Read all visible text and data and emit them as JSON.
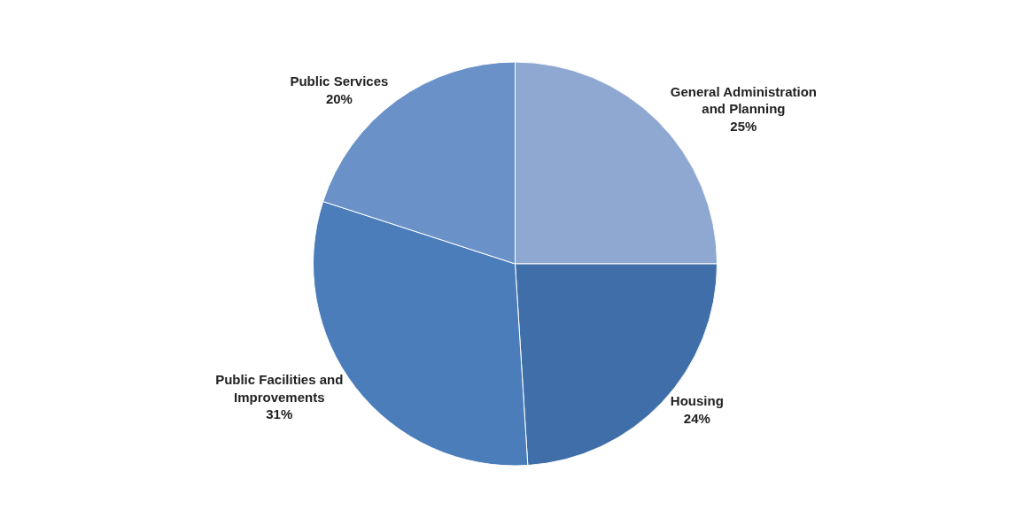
{
  "chart_data": {
    "type": "pie",
    "categories": [
      "General Administration and Planning",
      "Housing",
      "Public Facilities and Improvements",
      "Public Services"
    ],
    "values": [
      25,
      24,
      31,
      20
    ],
    "value_labels": [
      "25%",
      "24%",
      "31%",
      "20%"
    ],
    "colors": [
      "#8fa8d2",
      "#3f6ea8",
      "#4a7dba",
      "#6a92c8"
    ],
    "legend": false
  }
}
